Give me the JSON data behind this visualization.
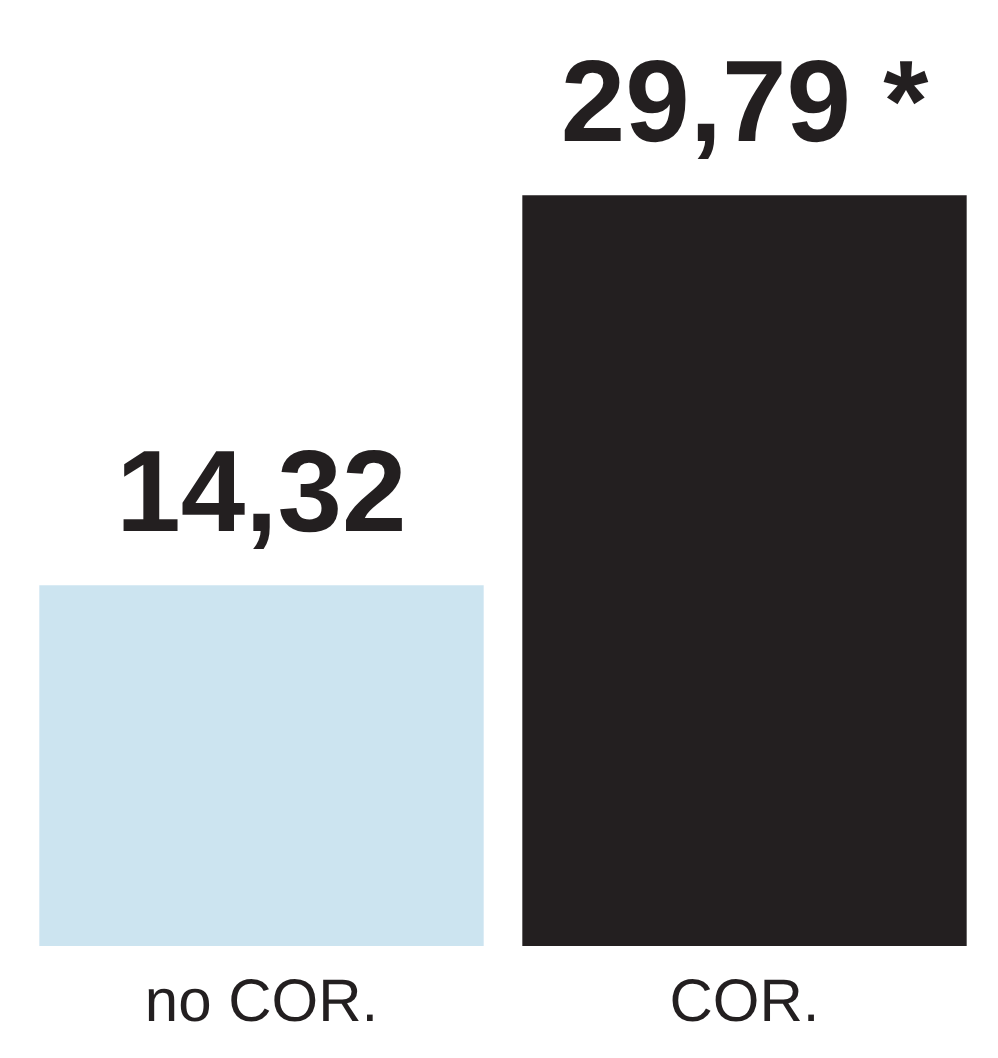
{
  "chart_data": {
    "type": "bar",
    "categories": [
      "no COR.",
      "COR."
    ],
    "values": [
      14.32,
      29.79
    ],
    "colors": [
      "#cce4f0",
      "#231f20"
    ],
    "value_labels": [
      "14,32",
      "29,79 *"
    ]
  }
}
